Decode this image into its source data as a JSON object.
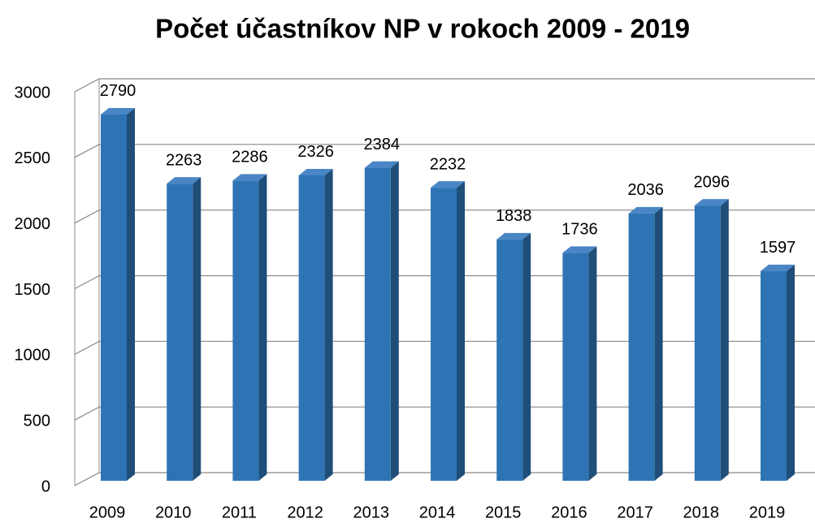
{
  "chart_data": {
    "type": "bar",
    "title": "Počet účastníkov NP v rokoch 2009 - 2019",
    "categories": [
      "2009",
      "2010",
      "2011",
      "2012",
      "2013",
      "2014",
      "2015",
      "2016",
      "2017",
      "2018",
      "2019"
    ],
    "values": [
      2790,
      2263,
      2286,
      2326,
      2384,
      2232,
      1838,
      1736,
      2036,
      2096,
      1597
    ],
    "color": "#2e74b5",
    "ylim": [
      0,
      3000
    ],
    "yticks": [
      0,
      500,
      1000,
      1500,
      2000,
      2500,
      3000
    ],
    "grid": true
  }
}
